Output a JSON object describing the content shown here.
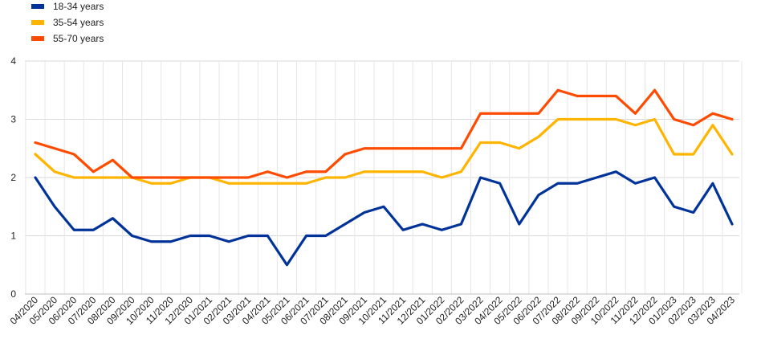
{
  "chart_data": {
    "type": "line",
    "title": "",
    "xlabel": "",
    "ylabel": "",
    "ylim": [
      0,
      4
    ],
    "yticks": [
      0,
      1,
      2,
      3,
      4
    ],
    "grid": true,
    "legend_position": "top-left",
    "categories": [
      "04/2020",
      "05/2020",
      "06/2020",
      "07/2020",
      "08/2020",
      "09/2020",
      "10/2020",
      "11/2020",
      "12/2020",
      "01/2021",
      "02/2021",
      "03/2021",
      "04/2021",
      "05/2021",
      "06/2021",
      "07/2021",
      "08/2021",
      "09/2021",
      "10/2021",
      "11/2021",
      "12/2021",
      "01/2022",
      "02/2022",
      "03/2022",
      "04/2022",
      "05/2022",
      "06/2022",
      "07/2022",
      "08/2022",
      "09/2022",
      "10/2022",
      "11/2022",
      "12/2022",
      "01/2023",
      "02/2023",
      "03/2023",
      "04/2023"
    ],
    "series": [
      {
        "name": "18-34 years",
        "color": "#003399",
        "values": [
          2.0,
          1.5,
          1.1,
          1.1,
          1.3,
          1.0,
          0.9,
          0.9,
          1.0,
          1.0,
          0.9,
          1.0,
          1.0,
          0.5,
          1.0,
          1.0,
          1.2,
          1.4,
          1.5,
          1.1,
          1.2,
          1.1,
          1.2,
          2.0,
          1.9,
          1.2,
          1.7,
          1.9,
          1.9,
          2.0,
          2.1,
          1.9,
          2.0,
          1.5,
          1.4,
          1.9,
          1.2
        ]
      },
      {
        "name": "35-54 years",
        "color": "#FFB400",
        "values": [
          2.4,
          2.1,
          2.0,
          2.0,
          2.0,
          2.0,
          1.9,
          1.9,
          2.0,
          2.0,
          1.9,
          1.9,
          1.9,
          1.9,
          1.9,
          2.0,
          2.0,
          2.1,
          2.1,
          2.1,
          2.1,
          2.0,
          2.1,
          2.6,
          2.6,
          2.5,
          2.7,
          3.0,
          3.0,
          3.0,
          3.0,
          2.9,
          3.0,
          2.4,
          2.4,
          2.9,
          2.4
        ]
      },
      {
        "name": "55-70 years",
        "color": "#FF4B00",
        "values": [
          2.6,
          2.5,
          2.4,
          2.1,
          2.3,
          2.0,
          2.0,
          2.0,
          2.0,
          2.0,
          2.0,
          2.0,
          2.1,
          2.0,
          2.1,
          2.1,
          2.4,
          2.5,
          2.5,
          2.5,
          2.5,
          2.5,
          2.5,
          3.1,
          3.1,
          3.1,
          3.1,
          3.5,
          3.4,
          3.4,
          3.4,
          3.1,
          3.5,
          3.0,
          2.9,
          3.1,
          3.0
        ]
      }
    ]
  }
}
